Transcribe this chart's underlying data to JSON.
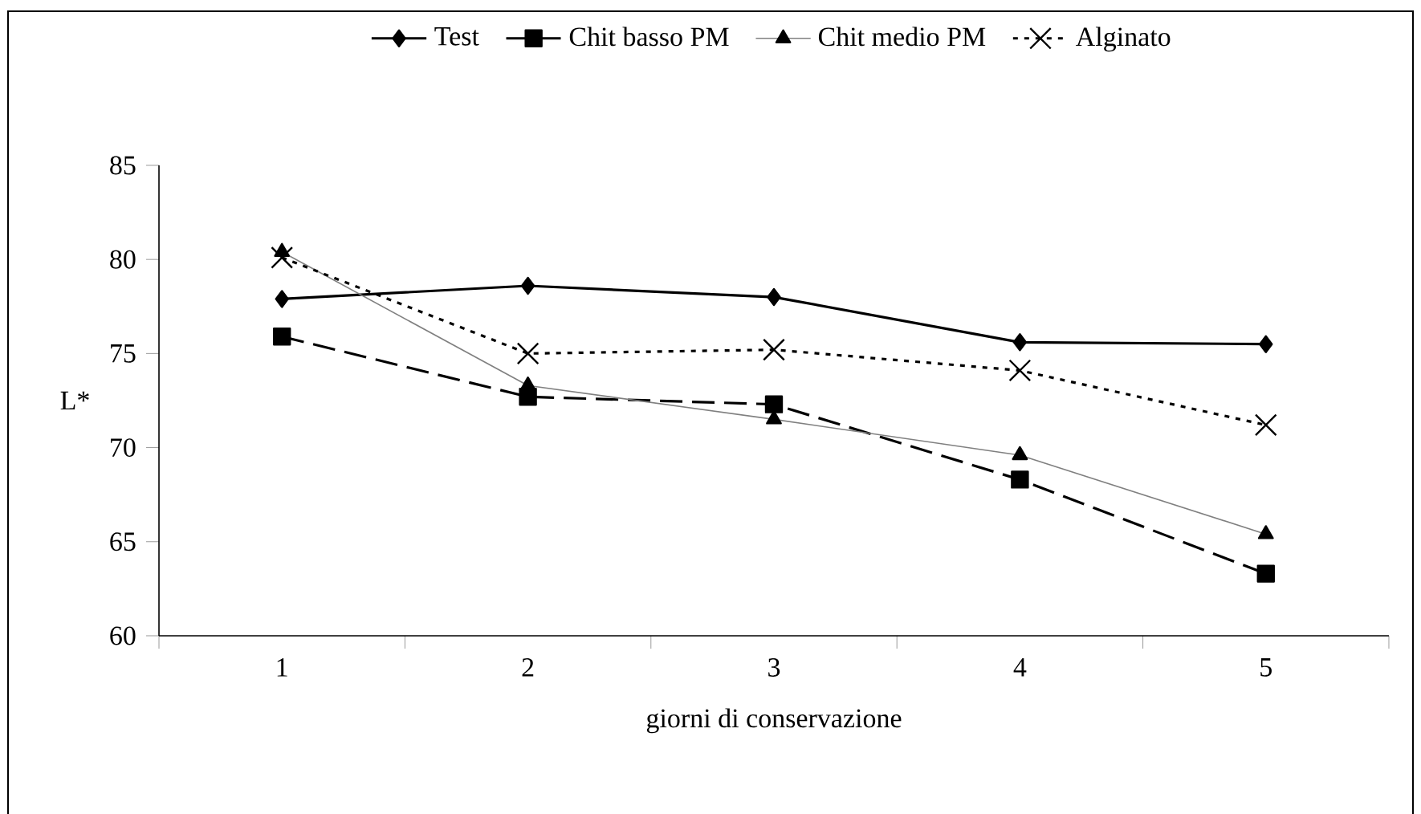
{
  "chart_data": {
    "type": "line",
    "xlabel": "giorni di conservazione",
    "ylabel": "L*",
    "categories": [
      "1",
      "2",
      "3",
      "4",
      "5"
    ],
    "ylim": [
      60,
      85
    ],
    "yticks": [
      60,
      65,
      70,
      75,
      80,
      85
    ],
    "grid": false,
    "legend": "top",
    "series": [
      {
        "name": "Test",
        "color": "#000000",
        "marker": "diamond",
        "line_style": "solid",
        "values": [
          77.9,
          78.6,
          78.0,
          75.6,
          75.5
        ]
      },
      {
        "name": "Chit basso PM",
        "color": "#000000",
        "marker": "square",
        "line_style": "dashed",
        "values": [
          75.9,
          72.7,
          72.3,
          68.3,
          63.3
        ]
      },
      {
        "name": "Chit medio PM",
        "color": "#808080",
        "marker": "triangle",
        "line_style": "solid",
        "values": [
          80.4,
          73.3,
          71.5,
          69.6,
          65.4
        ]
      },
      {
        "name": "Alginato",
        "color": "#000000",
        "marker": "cross",
        "line_style": "dotted",
        "values": [
          80.1,
          75.0,
          75.2,
          74.1,
          71.2
        ]
      }
    ]
  }
}
